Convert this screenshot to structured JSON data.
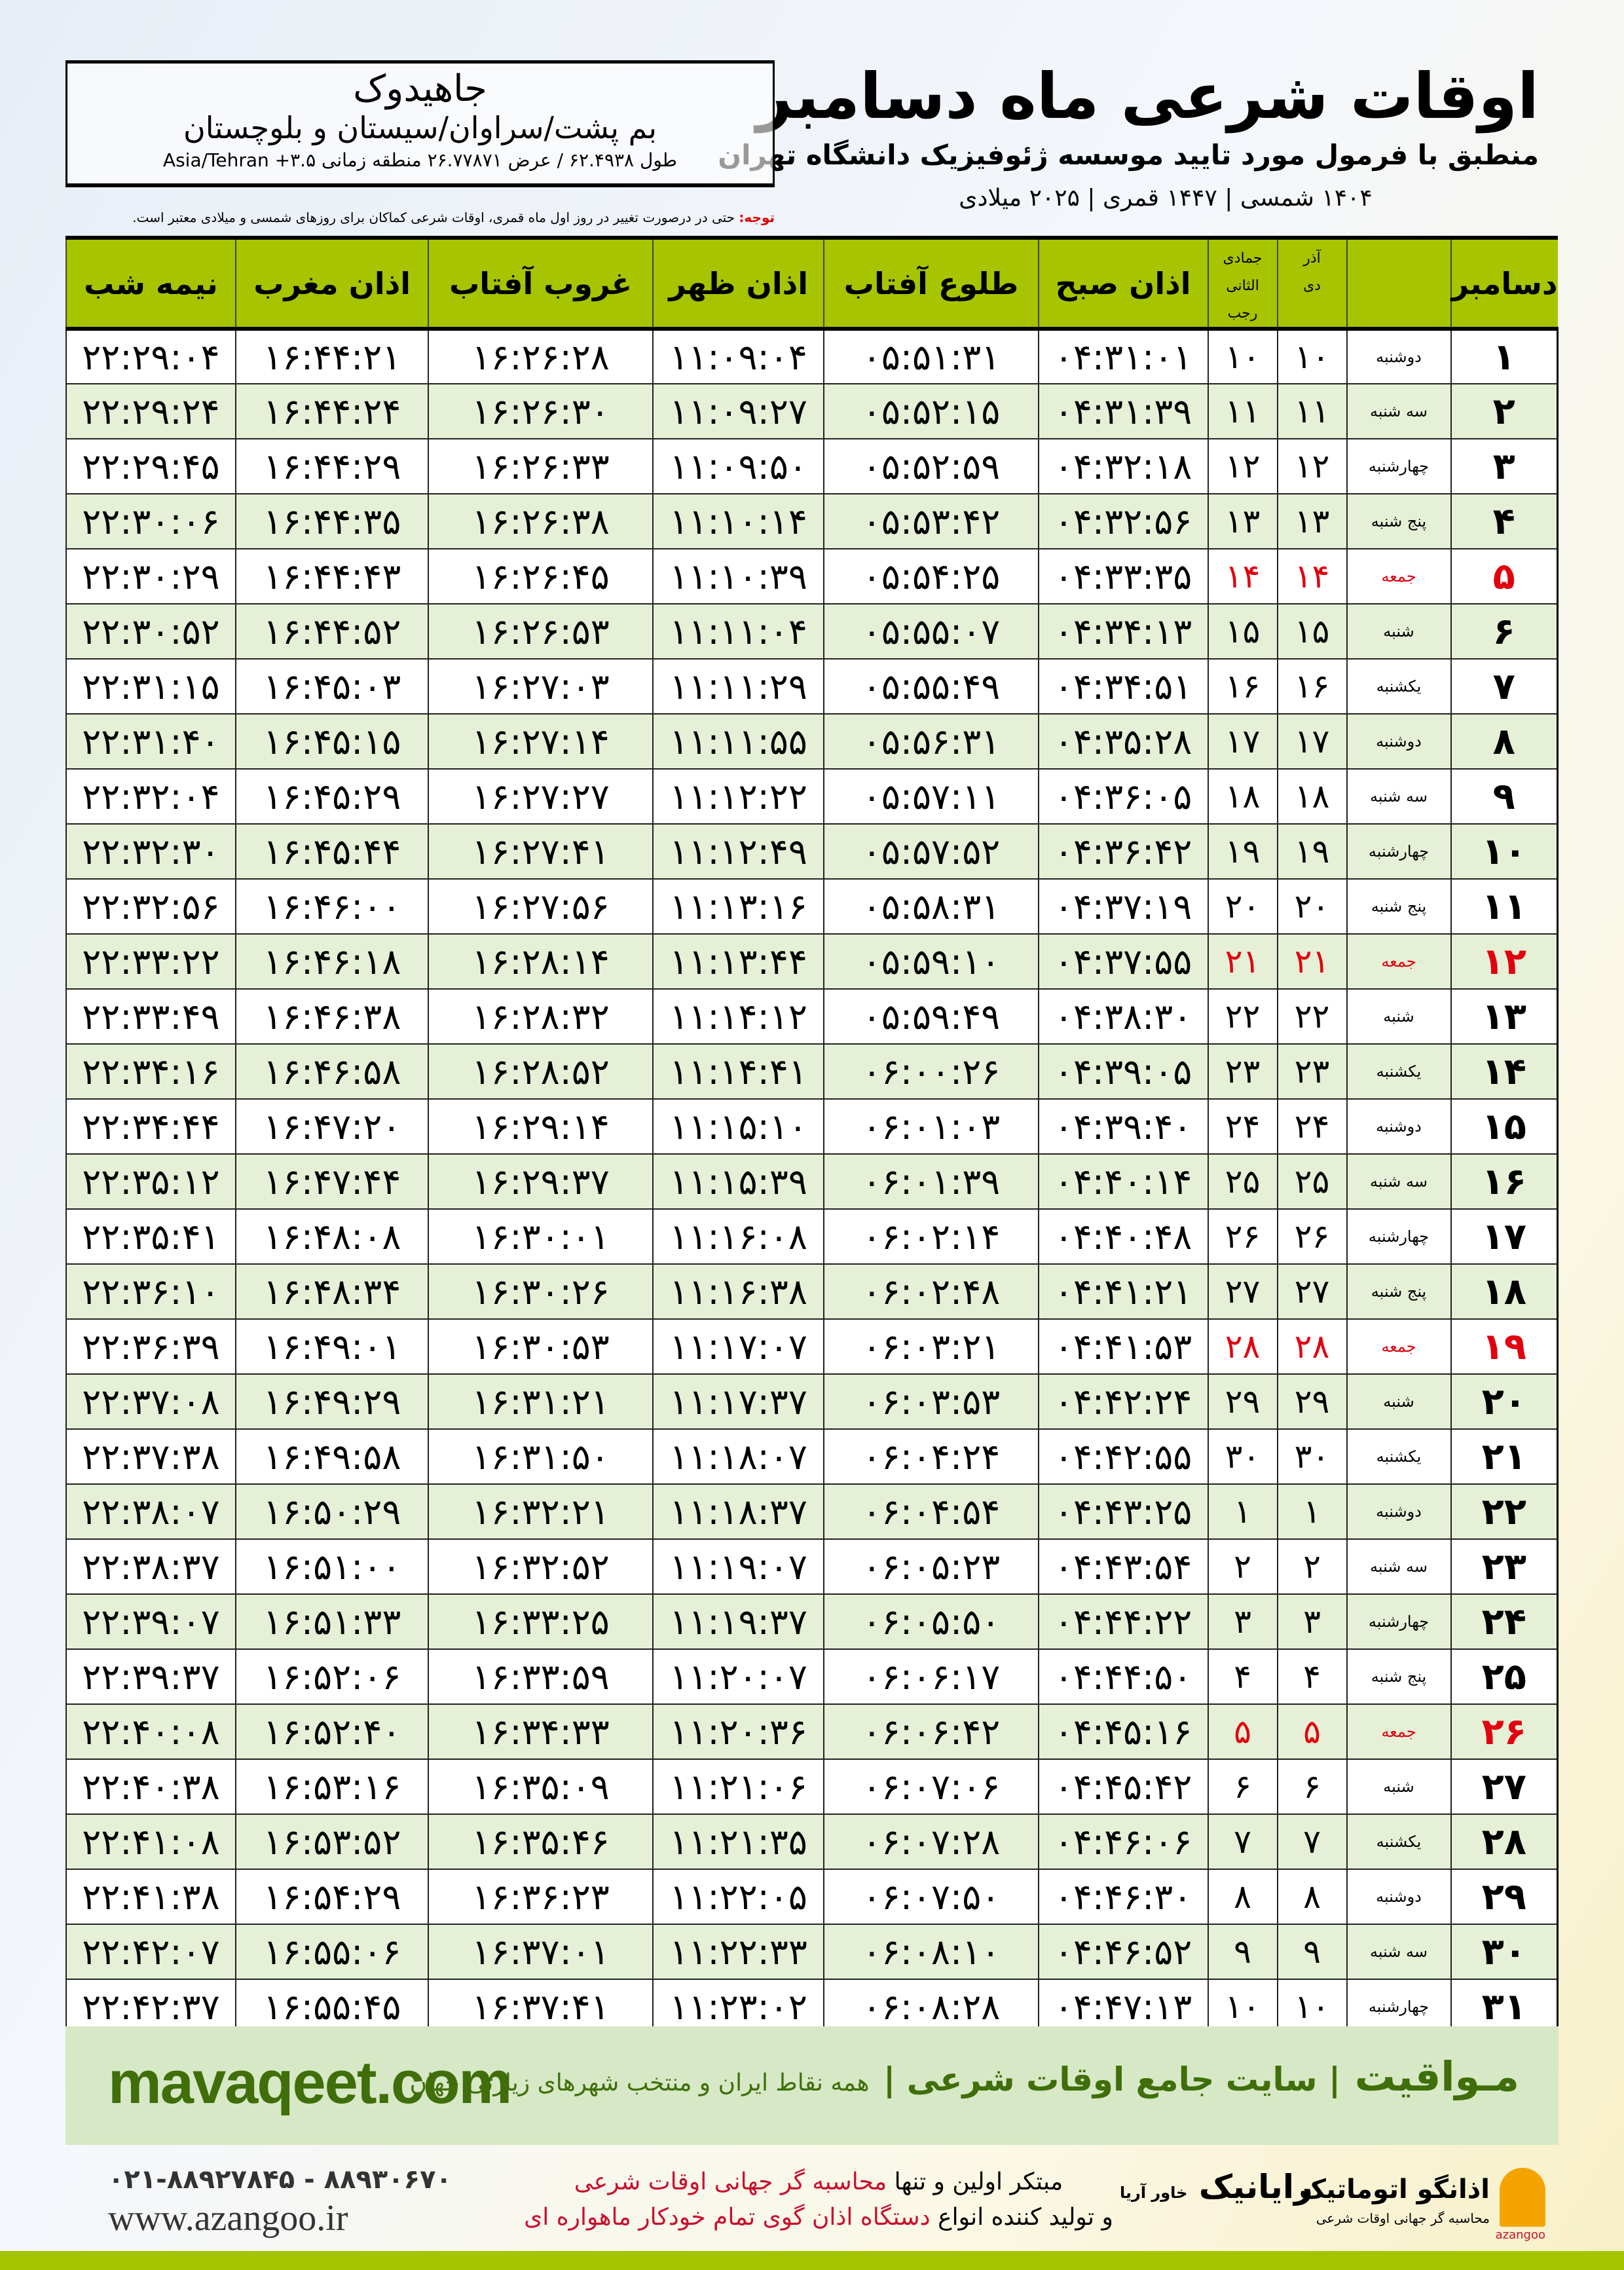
{
  "header": {
    "title": "اوقات شرعی ماه دسامبر",
    "subtitle": "منطبق با فرمول مورد تایید موسسه ژئوفیزیک دانشگاه تهران",
    "years": "۱۴۰۴ شمسی | ۱۴۴۷ قمری | ۲۰۲۵ میلادی"
  },
  "location": {
    "city": "جاهیدوک",
    "region": "بم پشت/سراوان/سیستان و بلوچستان",
    "coords": "طول ۶۲.۴۹۳۸ / عرض ۲۶.۷۷۸۷۱ منطقه زمانی Asia/Tehran +۳.۵"
  },
  "note": {
    "label": "توجه:",
    "text": "حتی در درصورت تغییر در روز اول ماه قمری، اوقات شرعی کماکان برای روزهای شمسی و میلادی معتبر است."
  },
  "table": {
    "headers": {
      "day": "دسامبر",
      "shamsi_top": "آذر",
      "shamsi_bottom": "دی",
      "qamari_top": "جمادی الثانی",
      "qamari_bottom": "رجب",
      "fajr": "اذان صبح",
      "sunrise": "طلوع آفتاب",
      "dhuhr": "اذان ظهر",
      "sunset": "غروب آفتاب",
      "maghrib": "اذان مغرب",
      "midnight": "نیمه شب"
    },
    "friday_color": "#e00010",
    "rows": [
      [
        "۱",
        "دوشنبه",
        "۱۰",
        "۱۰",
        "۰۴:۳۱:۰۱",
        "۰۵:۵۱:۳۱",
        "۱۱:۰۹:۰۴",
        "۱۶:۲۶:۲۸",
        "۱۶:۴۴:۲۱",
        "۲۲:۲۹:۰۴"
      ],
      [
        "۲",
        "سه شنبه",
        "۱۱",
        "۱۱",
        "۰۴:۳۱:۳۹",
        "۰۵:۵۲:۱۵",
        "۱۱:۰۹:۲۷",
        "۱۶:۲۶:۳۰",
        "۱۶:۴۴:۲۴",
        "۲۲:۲۹:۲۴"
      ],
      [
        "۳",
        "چهارشنبه",
        "۱۲",
        "۱۲",
        "۰۴:۳۲:۱۸",
        "۰۵:۵۲:۵۹",
        "۱۱:۰۹:۵۰",
        "۱۶:۲۶:۳۳",
        "۱۶:۴۴:۲۹",
        "۲۲:۲۹:۴۵"
      ],
      [
        "۴",
        "پنج شنبه",
        "۱۳",
        "۱۳",
        "۰۴:۳۲:۵۶",
        "۰۵:۵۳:۴۲",
        "۱۱:۱۰:۱۴",
        "۱۶:۲۶:۳۸",
        "۱۶:۴۴:۳۵",
        "۲۲:۳۰:۰۶"
      ],
      [
        "۵",
        "جمعه",
        "۱۴",
        "۱۴",
        "۰۴:۳۳:۳۵",
        "۰۵:۵۴:۲۵",
        "۱۱:۱۰:۳۹",
        "۱۶:۲۶:۴۵",
        "۱۶:۴۴:۴۳",
        "۲۲:۳۰:۲۹"
      ],
      [
        "۶",
        "شنبه",
        "۱۵",
        "۱۵",
        "۰۴:۳۴:۱۳",
        "۰۵:۵۵:۰۷",
        "۱۱:۱۱:۰۴",
        "۱۶:۲۶:۵۳",
        "۱۶:۴۴:۵۲",
        "۲۲:۳۰:۵۲"
      ],
      [
        "۷",
        "یکشنبه",
        "۱۶",
        "۱۶",
        "۰۴:۳۴:۵۱",
        "۰۵:۵۵:۴۹",
        "۱۱:۱۱:۲۹",
        "۱۶:۲۷:۰۳",
        "۱۶:۴۵:۰۳",
        "۲۲:۳۱:۱۵"
      ],
      [
        "۸",
        "دوشنبه",
        "۱۷",
        "۱۷",
        "۰۴:۳۵:۲۸",
        "۰۵:۵۶:۳۱",
        "۱۱:۱۱:۵۵",
        "۱۶:۲۷:۱۴",
        "۱۶:۴۵:۱۵",
        "۲۲:۳۱:۴۰"
      ],
      [
        "۹",
        "سه شنبه",
        "۱۸",
        "۱۸",
        "۰۴:۳۶:۰۵",
        "۰۵:۵۷:۱۱",
        "۱۱:۱۲:۲۲",
        "۱۶:۲۷:۲۷",
        "۱۶:۴۵:۲۹",
        "۲۲:۳۲:۰۴"
      ],
      [
        "۱۰",
        "چهارشنبه",
        "۱۹",
        "۱۹",
        "۰۴:۳۶:۴۲",
        "۰۵:۵۷:۵۲",
        "۱۱:۱۲:۴۹",
        "۱۶:۲۷:۴۱",
        "۱۶:۴۵:۴۴",
        "۲۲:۳۲:۳۰"
      ],
      [
        "۱۱",
        "پنج شنبه",
        "۲۰",
        "۲۰",
        "۰۴:۳۷:۱۹",
        "۰۵:۵۸:۳۱",
        "۱۱:۱۳:۱۶",
        "۱۶:۲۷:۵۶",
        "۱۶:۴۶:۰۰",
        "۲۲:۳۲:۵۶"
      ],
      [
        "۱۲",
        "جمعه",
        "۲۱",
        "۲۱",
        "۰۴:۳۷:۵۵",
        "۰۵:۵۹:۱۰",
        "۱۱:۱۳:۴۴",
        "۱۶:۲۸:۱۴",
        "۱۶:۴۶:۱۸",
        "۲۲:۳۳:۲۲"
      ],
      [
        "۱۳",
        "شنبه",
        "۲۲",
        "۲۲",
        "۰۴:۳۸:۳۰",
        "۰۵:۵۹:۴۹",
        "۱۱:۱۴:۱۲",
        "۱۶:۲۸:۳۲",
        "۱۶:۴۶:۳۸",
        "۲۲:۳۳:۴۹"
      ],
      [
        "۱۴",
        "یکشنبه",
        "۲۳",
        "۲۳",
        "۰۴:۳۹:۰۵",
        "۰۶:۰۰:۲۶",
        "۱۱:۱۴:۴۱",
        "۱۶:۲۸:۵۲",
        "۱۶:۴۶:۵۸",
        "۲۲:۳۴:۱۶"
      ],
      [
        "۱۵",
        "دوشنبه",
        "۲۴",
        "۲۴",
        "۰۴:۳۹:۴۰",
        "۰۶:۰۱:۰۳",
        "۱۱:۱۵:۱۰",
        "۱۶:۲۹:۱۴",
        "۱۶:۴۷:۲۰",
        "۲۲:۳۴:۴۴"
      ],
      [
        "۱۶",
        "سه شنبه",
        "۲۵",
        "۲۵",
        "۰۴:۴۰:۱۴",
        "۰۶:۰۱:۳۹",
        "۱۱:۱۵:۳۹",
        "۱۶:۲۹:۳۷",
        "۱۶:۴۷:۴۴",
        "۲۲:۳۵:۱۲"
      ],
      [
        "۱۷",
        "چهارشنبه",
        "۲۶",
        "۲۶",
        "۰۴:۴۰:۴۸",
        "۰۶:۰۲:۱۴",
        "۱۱:۱۶:۰۸",
        "۱۶:۳۰:۰۱",
        "۱۶:۴۸:۰۸",
        "۲۲:۳۵:۴۱"
      ],
      [
        "۱۸",
        "پنج شنبه",
        "۲۷",
        "۲۷",
        "۰۴:۴۱:۲۱",
        "۰۶:۰۲:۴۸",
        "۱۱:۱۶:۳۸",
        "۱۶:۳۰:۲۶",
        "۱۶:۴۸:۳۴",
        "۲۲:۳۶:۱۰"
      ],
      [
        "۱۹",
        "جمعه",
        "۲۸",
        "۲۸",
        "۰۴:۴۱:۵۳",
        "۰۶:۰۳:۲۱",
        "۱۱:۱۷:۰۷",
        "۱۶:۳۰:۵۳",
        "۱۶:۴۹:۰۱",
        "۲۲:۳۶:۳۹"
      ],
      [
        "۲۰",
        "شنبه",
        "۲۹",
        "۲۹",
        "۰۴:۴۲:۲۴",
        "۰۶:۰۳:۵۳",
        "۱۱:۱۷:۳۷",
        "۱۶:۳۱:۲۱",
        "۱۶:۴۹:۲۹",
        "۲۲:۳۷:۰۸"
      ],
      [
        "۲۱",
        "یکشنبه",
        "۳۰",
        "۳۰",
        "۰۴:۴۲:۵۵",
        "۰۶:۰۴:۲۴",
        "۱۱:۱۸:۰۷",
        "۱۶:۳۱:۵۰",
        "۱۶:۴۹:۵۸",
        "۲۲:۳۷:۳۸"
      ],
      [
        "۲۲",
        "دوشنبه",
        "۱",
        "۱",
        "۰۴:۴۳:۲۵",
        "۰۶:۰۴:۵۴",
        "۱۱:۱۸:۳۷",
        "۱۶:۳۲:۲۱",
        "۱۶:۵۰:۲۹",
        "۲۲:۳۸:۰۷"
      ],
      [
        "۲۳",
        "سه شنبه",
        "۲",
        "۲",
        "۰۴:۴۳:۵۴",
        "۰۶:۰۵:۲۳",
        "۱۱:۱۹:۰۷",
        "۱۶:۳۲:۵۲",
        "۱۶:۵۱:۰۰",
        "۲۲:۳۸:۳۷"
      ],
      [
        "۲۴",
        "چهارشنبه",
        "۳",
        "۳",
        "۰۴:۴۴:۲۲",
        "۰۶:۰۵:۵۰",
        "۱۱:۱۹:۳۷",
        "۱۶:۳۳:۲۵",
        "۱۶:۵۱:۳۳",
        "۲۲:۳۹:۰۷"
      ],
      [
        "۲۵",
        "پنج شنبه",
        "۴",
        "۴",
        "۰۴:۴۴:۵۰",
        "۰۶:۰۶:۱۷",
        "۱۱:۲۰:۰۷",
        "۱۶:۳۳:۵۹",
        "۱۶:۵۲:۰۶",
        "۲۲:۳۹:۳۷"
      ],
      [
        "۲۶",
        "جمعه",
        "۵",
        "۵",
        "۰۴:۴۵:۱۶",
        "۰۶:۰۶:۴۲",
        "۱۱:۲۰:۳۶",
        "۱۶:۳۴:۳۳",
        "۱۶:۵۲:۴۰",
        "۲۲:۴۰:۰۸"
      ],
      [
        "۲۷",
        "شنبه",
        "۶",
        "۶",
        "۰۴:۴۵:۴۲",
        "۰۶:۰۷:۰۶",
        "۱۱:۲۱:۰۶",
        "۱۶:۳۵:۰۹",
        "۱۶:۵۳:۱۶",
        "۲۲:۴۰:۳۸"
      ],
      [
        "۲۸",
        "یکشنبه",
        "۷",
        "۷",
        "۰۴:۴۶:۰۶",
        "۰۶:۰۷:۲۸",
        "۱۱:۲۱:۳۵",
        "۱۶:۳۵:۴۶",
        "۱۶:۵۳:۵۲",
        "۲۲:۴۱:۰۸"
      ],
      [
        "۲۹",
        "دوشنبه",
        "۸",
        "۸",
        "۰۴:۴۶:۳۰",
        "۰۶:۰۷:۵۰",
        "۱۱:۲۲:۰۵",
        "۱۶:۳۶:۲۳",
        "۱۶:۵۴:۲۹",
        "۲۲:۴۱:۳۸"
      ],
      [
        "۳۰",
        "سه شنبه",
        "۹",
        "۹",
        "۰۴:۴۶:۵۲",
        "۰۶:۰۸:۱۰",
        "۱۱:۲۲:۳۳",
        "۱۶:۳۷:۰۱",
        "۱۶:۵۵:۰۶",
        "۲۲:۴۲:۰۷"
      ],
      [
        "۳۱",
        "چهارشنبه",
        "۱۰",
        "۱۰",
        "۰۴:۴۷:۱۳",
        "۰۶:۰۸:۲۸",
        "۱۱:۲۳:۰۲",
        "۱۶:۳۷:۴۱",
        "۱۶:۵۵:۴۵",
        "۲۲:۴۲:۳۷"
      ]
    ]
  },
  "banner": {
    "site": "mavaqeet.com",
    "brand": "مـواقیت",
    "tagline": "| سایت جامع اوقات شرعی |",
    "tagline_small": "همه نقاط ایران و منتخب شهرهای زیارتی جهان"
  },
  "footer": {
    "phone": "۰۲۱-۸۸۹۲۷۸۴۵ - ۸۸۹۳۰۶۷۰",
    "web": "www.azangoo.ir",
    "line1a": "مبتکر اولین و تنها",
    "line1b": "محاسبه گر جهانی اوقات شرعی",
    "line2a": "و تولید کننده انواع",
    "line2b": "دستگاه اذان گوی تمام خودکار ماهواره ای",
    "logo_rayanik": "رایانیک",
    "logo_rayanik_small": "خاور آریا",
    "logo_azangoo": "اذانگو اتوماتیک",
    "logo_azangoo_small": "محاسبه گر جهانی اوقات شرعی",
    "logo_azangoo_latin": "azangoo"
  }
}
